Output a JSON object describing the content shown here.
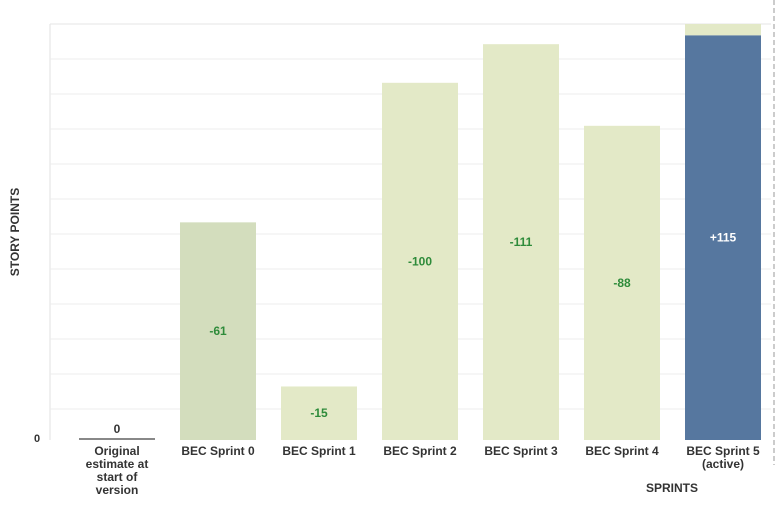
{
  "chart_data": {
    "type": "bar",
    "ylabel": "STORY POINTS",
    "xlabel": "SPRINTS",
    "ylim": [
      0,
      474
    ],
    "y_tick_labels": [
      "0"
    ],
    "grid": true,
    "categories": [
      [
        "Original",
        "estimate at",
        "start of",
        "version"
      ],
      [
        "BEC Sprint 0"
      ],
      [
        "BEC Sprint 1"
      ],
      [
        "BEC Sprint 2"
      ],
      [
        "BEC Sprint 3"
      ],
      [
        "BEC Sprint 4"
      ],
      [
        "BEC Sprint 5",
        "(active)"
      ]
    ],
    "bars": [
      {
        "base": 0,
        "top": 0,
        "label": "0",
        "color": "#888888",
        "label_color": "#333333"
      },
      {
        "base": 0,
        "top": 248,
        "label": "-61",
        "color": "#d3ddbd",
        "label_color": "#2e8b3a"
      },
      {
        "base": 0,
        "top": 61,
        "label": "-15",
        "color": "#e3e9c7",
        "label_color": "#2e8b3a"
      },
      {
        "base": 0,
        "top": 407,
        "label": "-100",
        "color": "#e3e9c7",
        "label_color": "#2e8b3a"
      },
      {
        "base": 0,
        "top": 451,
        "label": "-111",
        "color": "#e3e9c7",
        "label_color": "#2e8b3a"
      },
      {
        "base": 0,
        "top": 358,
        "label": "-88",
        "color": "#e3e9c7",
        "label_color": "#2e8b3a"
      },
      {
        "base": 0,
        "top": 461,
        "label": "+115",
        "color": "#56779f",
        "label_color": "#ffffff",
        "cap_top": 474,
        "cap_color": "#e3e9c7"
      }
    ]
  }
}
